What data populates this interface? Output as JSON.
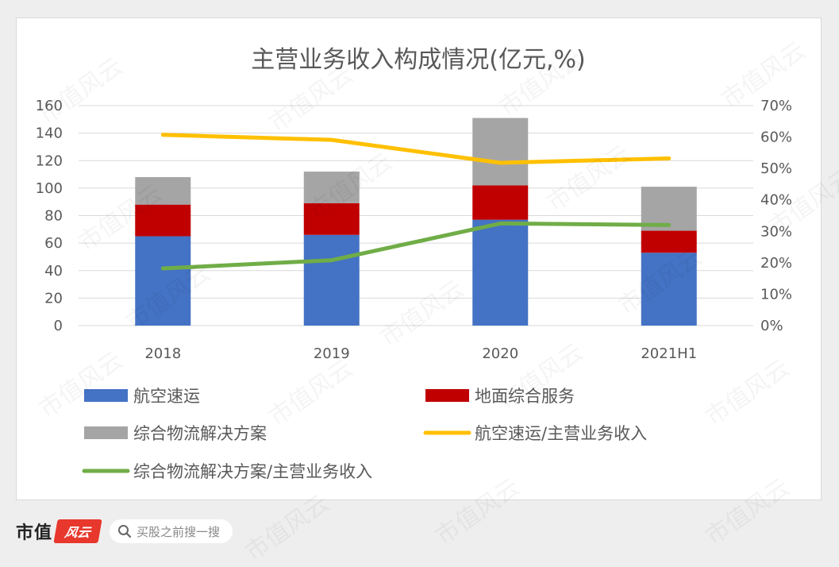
{
  "chart_data": {
    "type": "bar",
    "stacked": true,
    "title": "主营业务收入构成情况(亿元,%)",
    "categories": [
      "2018",
      "2019",
      "2020",
      "2021H1"
    ],
    "series": [
      {
        "name": "航空速运",
        "kind": "bar",
        "color": "#4472c4",
        "values": [
          65,
          66,
          77,
          53
        ]
      },
      {
        "name": "地面综合服务",
        "kind": "bar",
        "color": "#c00000",
        "values": [
          23,
          23,
          25,
          16
        ]
      },
      {
        "name": "综合物流解决方案",
        "kind": "bar",
        "color": "#a5a5a5",
        "values": [
          20,
          23,
          49,
          32
        ]
      },
      {
        "name": "航空速运/主营业务收入",
        "kind": "line",
        "axis": "right",
        "color": "#ffc000",
        "values": [
          60.7,
          59.1,
          51.8,
          53.2
        ]
      },
      {
        "name": "综合物流解决方案/主营业务收入",
        "kind": "line",
        "axis": "right",
        "color": "#70ad47",
        "values": [
          18.2,
          20.8,
          32.5,
          32.0
        ]
      }
    ],
    "ylim": [
      0,
      160
    ],
    "yticks": [
      "0",
      "20",
      "40",
      "60",
      "80",
      "100",
      "120",
      "140",
      "160"
    ],
    "y2lim": [
      0,
      70
    ],
    "y2ticks": [
      "0%",
      "10%",
      "20%",
      "30%",
      "40%",
      "50%",
      "60%",
      "70%"
    ],
    "grid": true,
    "legend_position": "bottom"
  },
  "footer": {
    "brand": "市值",
    "logo_text": "风云",
    "search_text": "买股之前搜一搜"
  },
  "watermark_text": "市值风云",
  "colors": {
    "gridline": "#d9d9d9",
    "text": "#595959",
    "title": "#595959"
  }
}
